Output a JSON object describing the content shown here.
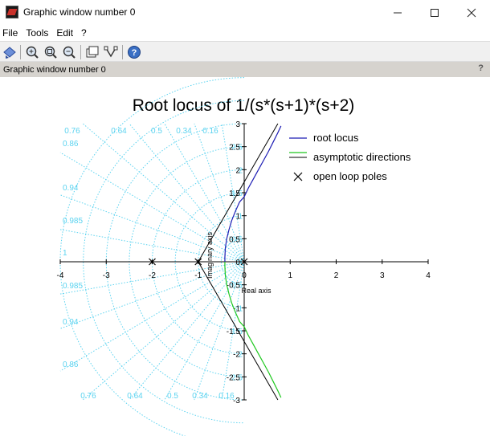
{
  "window": {
    "title": "Graphic window number 0",
    "minimize_glyph": "—",
    "maximize_glyph": "☐",
    "close_glyph": "✕"
  },
  "menu": [
    "File",
    "Tools",
    "Edit",
    "?"
  ],
  "toolbar": {
    "icons": [
      "rotate-2d-3d-icon",
      "zoom-in-icon",
      "zoom-fit-icon",
      "zoom-out-icon",
      "datatip-icon",
      "editor-icon",
      "help-icon"
    ]
  },
  "infobar": {
    "label": "Graphic window number 0",
    "help": "?"
  },
  "colors": {
    "grid": "#5bd3f0",
    "root_locus_upper": "#1c1cb4",
    "root_locus_lower": "#1ec81e",
    "asymptote": "#000000"
  },
  "chart_data": {
    "type": "line",
    "title": "Root locus of 1/(s*(s+1)*(s+2)",
    "xlabel": "Real axis",
    "ylabel": "Imaginary axis",
    "xlim": [
      -4,
      4
    ],
    "ylim": [
      -3,
      3
    ],
    "x_ticks": [
      "-4",
      "-3",
      "-2",
      "-1",
      "0",
      "1",
      "2",
      "3",
      "4"
    ],
    "y_ticks": [
      "3",
      "2.5",
      "2",
      "1.5",
      "1",
      "0.5",
      "0",
      "-0.5",
      "-1",
      "-1.5",
      "-2",
      "-2.5",
      "-3"
    ],
    "grid_damping_top": [
      "0.76",
      "0.64",
      "0.5",
      "0.34",
      "0.16"
    ],
    "grid_damping_left": [
      "0.86",
      "0.94",
      "0.985",
      "1"
    ],
    "grid_damping_left_lower": [
      "0.985",
      "0.94",
      "0.86"
    ],
    "grid_damping_bottom": [
      "0.76",
      "0.64",
      "0.5",
      "0.34",
      "0.16"
    ],
    "grid_wn_labels": [
      "2.5",
      "2",
      "1.5",
      "1",
      "0.5"
    ],
    "legend": {
      "position": "top-right",
      "entries": [
        "root locus",
        "asymptotic directions",
        "open loop poles"
      ]
    },
    "open_loop_poles": [
      [
        -2,
        0
      ],
      [
        -1,
        0
      ],
      [
        0,
        0
      ]
    ],
    "asymptote_centroid": [
      -1,
      0
    ],
    "asymptote_angles_deg": [
      60,
      180,
      -60
    ],
    "series": [
      {
        "name": "root locus",
        "color": "#1c1cb4",
        "points": [
          [
            -0.42,
            0
          ],
          [
            -0.42,
            0.1
          ],
          [
            -0.41,
            0.3
          ],
          [
            -0.38,
            0.5
          ],
          [
            -0.33,
            0.7
          ],
          [
            -0.27,
            0.9
          ],
          [
            -0.19,
            1.1
          ],
          [
            -0.1,
            1.3
          ],
          [
            0,
            1.41
          ],
          [
            0.09,
            1.6
          ],
          [
            0.2,
            1.8
          ],
          [
            0.31,
            2.0
          ],
          [
            0.42,
            2.2
          ],
          [
            0.53,
            2.4
          ],
          [
            0.63,
            2.6
          ],
          [
            0.73,
            2.8
          ],
          [
            0.8,
            2.95
          ]
        ]
      },
      {
        "color": "#1ec81e",
        "points": [
          [
            -0.42,
            0
          ],
          [
            -0.42,
            -0.1
          ],
          [
            -0.41,
            -0.3
          ],
          [
            -0.38,
            -0.5
          ],
          [
            -0.33,
            -0.7
          ],
          [
            -0.27,
            -0.9
          ],
          [
            -0.19,
            -1.1
          ],
          [
            -0.1,
            -1.3
          ],
          [
            0,
            -1.41
          ],
          [
            0.09,
            -1.6
          ],
          [
            0.2,
            -1.8
          ],
          [
            0.31,
            -2.0
          ],
          [
            0.42,
            -2.2
          ],
          [
            0.53,
            -2.4
          ],
          [
            0.63,
            -2.6
          ],
          [
            0.73,
            -2.8
          ],
          [
            0.8,
            -2.95
          ]
        ]
      }
    ]
  }
}
